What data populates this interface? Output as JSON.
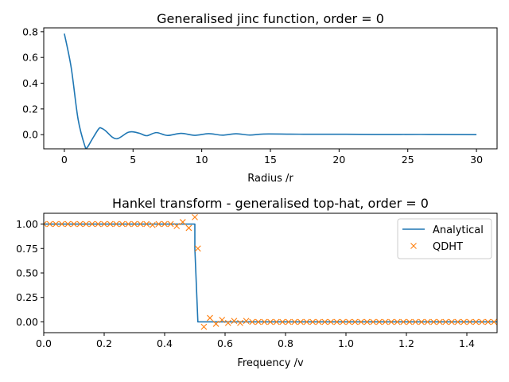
{
  "chart_data": [
    {
      "type": "line",
      "title": "Generalised jinc function, order = 0",
      "xlabel": "Radius /r",
      "ylabel": "",
      "xlim": [
        -1.5,
        31.5
      ],
      "ylim": [
        -0.11,
        0.83
      ],
      "xticks": [
        0,
        5,
        10,
        15,
        20,
        25,
        30
      ],
      "xtick_labels": [
        "0",
        "5",
        "10",
        "15",
        "20",
        "25",
        "30"
      ],
      "yticks": [
        0.0,
        0.2,
        0.4,
        0.6,
        0.8
      ],
      "ytick_labels": [
        "0.0",
        "0.2",
        "0.4",
        "0.6",
        "0.8"
      ],
      "grid": false,
      "series": [
        {
          "name": "",
          "color": "#1f77b4",
          "x": [
            0,
            0.5,
            1.0,
            1.5,
            1.66,
            2.0,
            2.5,
            2.7,
            3.0,
            3.5,
            3.9,
            4.5,
            4.7,
            5.0,
            5.5,
            6.0,
            6.7,
            7.5,
            8.5,
            9.5,
            10.5,
            11.5,
            12.5,
            13.5,
            14.5,
            16.5,
            18.5,
            20.5,
            22.5,
            24.5,
            26.5,
            28.5,
            30
          ],
          "y": [
            0.785,
            0.52,
            0.12,
            -0.09,
            -0.1,
            -0.04,
            0.045,
            0.05,
            0.03,
            -0.02,
            -0.03,
            0.01,
            0.02,
            0.022,
            0.01,
            -0.008,
            0.016,
            -0.006,
            0.01,
            -0.005,
            0.008,
            -0.004,
            0.007,
            -0.003,
            0.005,
            0.004,
            0.003,
            0.003,
            0.002,
            0.002,
            0.002,
            0.001,
            0.0
          ]
        }
      ]
    },
    {
      "type": "line",
      "title": "Hankel transform - generalised top-hat, order = 0",
      "xlabel": "Frequency /v",
      "ylabel": "",
      "xlim": [
        0.0,
        1.5
      ],
      "ylim": [
        -0.11,
        1.11
      ],
      "xticks": [
        0.0,
        0.2,
        0.4,
        0.6,
        0.8,
        1.0,
        1.2,
        1.4
      ],
      "xtick_labels": [
        "0.0",
        "0.2",
        "0.4",
        "0.6",
        "0.8",
        "1.0",
        "1.2",
        "1.4"
      ],
      "yticks": [
        0.0,
        0.25,
        0.5,
        0.75,
        1.0
      ],
      "ytick_labels": [
        "0.00",
        "0.25",
        "0.50",
        "0.75",
        "1.00"
      ],
      "grid": false,
      "legend_position": "top-right",
      "series": [
        {
          "name": "Analytical",
          "style": "line",
          "color": "#1f77b4",
          "x": [
            0.0,
            0.5,
            0.5,
            0.51,
            0.51,
            1.5
          ],
          "y": [
            1.0,
            1.0,
            0.75,
            0.0,
            0.0,
            0.0
          ]
        },
        {
          "name": "QDHT",
          "style": "markers",
          "marker": "x",
          "color": "#ff7f0e",
          "x": [
            0.0,
            0.02,
            0.04,
            0.06,
            0.08,
            0.1,
            0.12,
            0.14,
            0.16,
            0.18,
            0.2,
            0.22,
            0.24,
            0.26,
            0.28,
            0.3,
            0.32,
            0.34,
            0.36,
            0.38,
            0.4,
            0.42,
            0.44,
            0.46,
            0.48,
            0.5,
            0.51,
            0.53,
            0.55,
            0.57,
            0.59,
            0.61,
            0.63,
            0.65,
            0.67,
            0.69,
            0.71,
            0.73,
            0.75,
            0.77,
            0.79,
            0.81,
            0.83,
            0.85,
            0.87,
            0.89,
            0.91,
            0.93,
            0.95,
            0.97,
            0.99,
            1.01,
            1.03,
            1.05,
            1.07,
            1.09,
            1.11,
            1.13,
            1.15,
            1.17,
            1.19,
            1.21,
            1.23,
            1.25,
            1.27,
            1.29,
            1.31,
            1.33,
            1.35,
            1.37,
            1.39,
            1.41,
            1.43,
            1.45,
            1.47,
            1.49
          ],
          "y": [
            1.0,
            1.0,
            1.0,
            1.0,
            1.0,
            1.0,
            1.0,
            1.0,
            1.0,
            1.0,
            1.0,
            1.0,
            1.0,
            1.0,
            1.0,
            1.0,
            1.0,
            1.0,
            0.99,
            1.0,
            1.0,
            1.0,
            0.98,
            1.02,
            0.96,
            1.07,
            0.75,
            -0.05,
            0.04,
            -0.02,
            0.02,
            -0.01,
            0.01,
            -0.01,
            0.01,
            0.0,
            0.0,
            0.0,
            0.0,
            0.0,
            0.0,
            0.0,
            0.0,
            0.0,
            0.0,
            0.0,
            0.0,
            0.0,
            0.0,
            0.0,
            0.0,
            0.0,
            0.0,
            0.0,
            0.0,
            0.0,
            0.0,
            0.0,
            0.0,
            0.0,
            0.0,
            0.0,
            0.0,
            0.0,
            0.0,
            0.0,
            0.0,
            0.0,
            0.0,
            0.0,
            0.0,
            0.0,
            0.0,
            0.0,
            0.0,
            0.0
          ]
        }
      ]
    }
  ]
}
